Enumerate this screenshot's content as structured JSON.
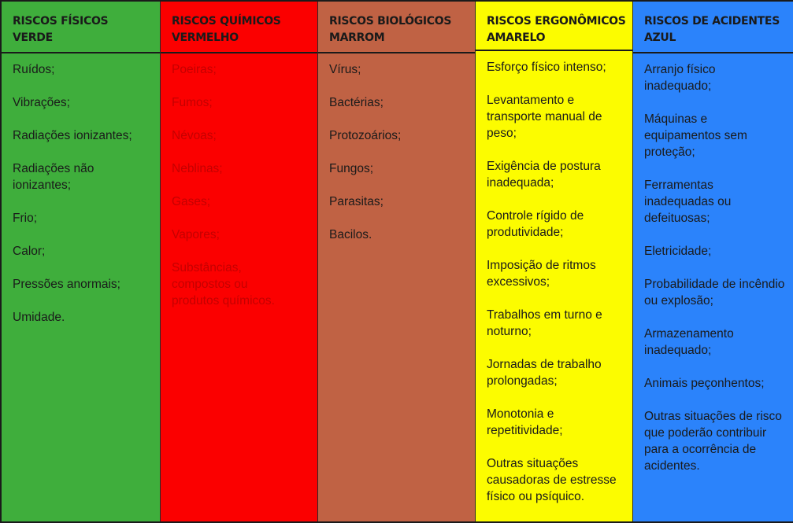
{
  "columns": [
    {
      "title": "RISCOS FÍSICOS",
      "color_name": "VERDE",
      "color": "#3fae3c",
      "items": [
        "Ruídos;",
        "Vibrações;",
        "Radiações ionizantes;",
        "Radiações não ionizantes;",
        "Frio;",
        "Calor;",
        "Pressões anormais;",
        "Umidade."
      ]
    },
    {
      "title": "RISCOS QUÍMICOS",
      "color_name": "VERMELHO",
      "color": "#fb0000",
      "items": [
        "Poeiras;",
        "Fumos;",
        "Névoas;",
        "Neblinas;",
        "Gases;",
        "Vapores;",
        "Substâncias, compostos ou produtos químicos."
      ]
    },
    {
      "title": "RISCOS BIOLÓGICOS",
      "color_name": "MARROM",
      "color": "#c06244",
      "items": [
        "Vírus;",
        "Bactérias;",
        "Protozoários;",
        "Fungos;",
        "Parasitas;",
        "Bacilos."
      ]
    },
    {
      "title": "RISCOS ERGONÔMICOS",
      "color_name": "AMARELO",
      "color": "#fcfc00",
      "items": [
        "Esforço físico intenso;",
        "Levantamento e transporte manual de peso;",
        "Exigência de postura inadequada;",
        "Controle rígido de produtividade;",
        "Imposição de ritmos excessivos;",
        "Trabalhos em turno e noturno;",
        "Jornadas de trabalho prolongadas;",
        "Monotonia e repetitividade;",
        "Outras situações causadoras de estresse físico ou psíquico."
      ]
    },
    {
      "title": "RISCOS DE ACIDENTES",
      "color_name": "AZUL",
      "color": "#2b83fb",
      "items": [
        "Arranjo físico inadequado;",
        "Máquinas e equipamentos sem proteção;",
        "Ferramentas inadequadas ou defeituosas;",
        "Eletricidade;",
        "Probabilidade de incêndio ou explosão;",
        "Armazenamento inadequado;",
        "Animais peçonhentos;",
        "Outras situações de risco que poderão contribuir para a ocorrência de acidentes."
      ]
    }
  ]
}
